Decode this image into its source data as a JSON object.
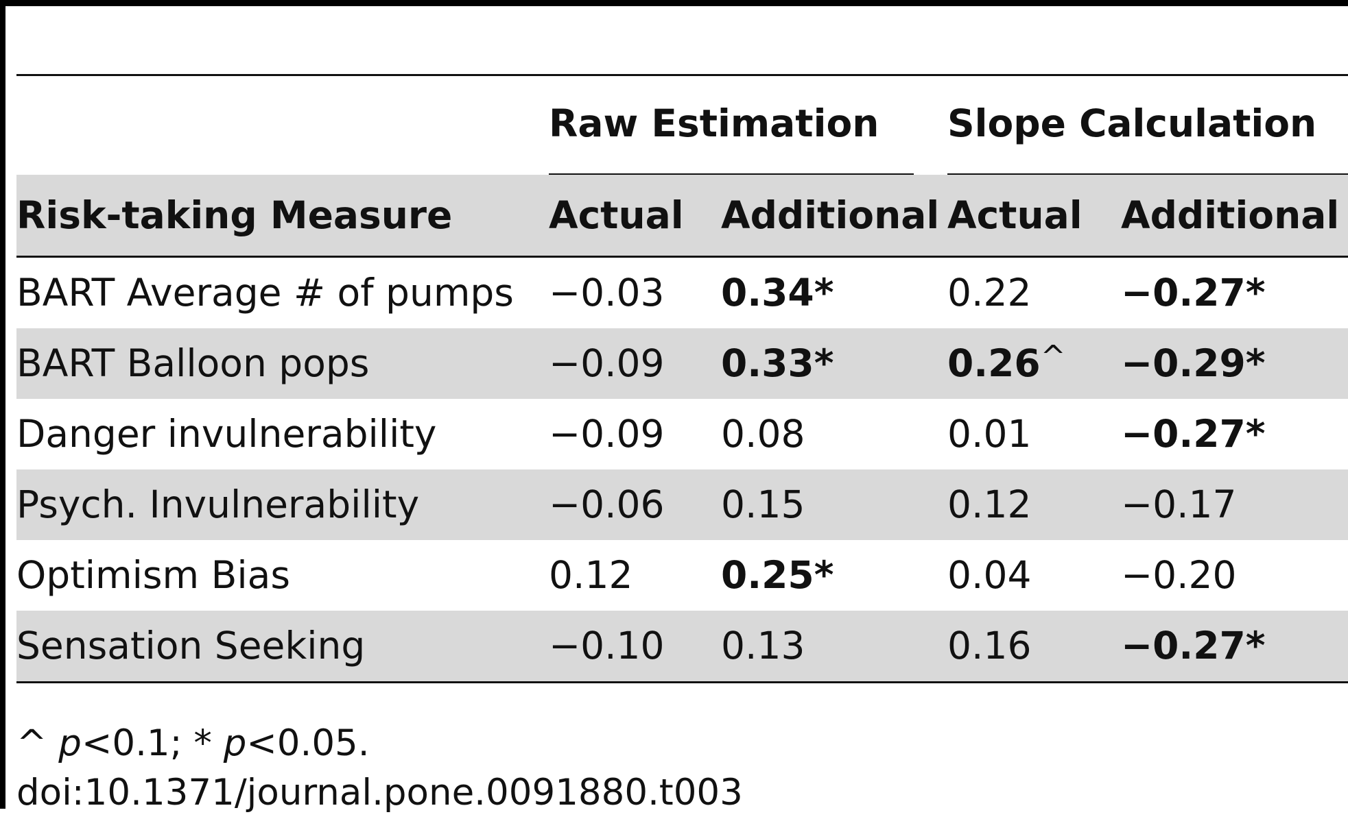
{
  "table": {
    "group_headers": [
      "Raw Estimation",
      "Slope Calculation"
    ],
    "column_headers": [
      "Risk-taking Measure",
      "Actual",
      "Additional",
      "Actual",
      "Additional"
    ],
    "rows": [
      {
        "measure": "BART Average # of pumps",
        "values": [
          {
            "text": "−0.03",
            "bold": false,
            "mark": ""
          },
          {
            "text": "0.34*",
            "bold": true,
            "mark": ""
          },
          {
            "text": "0.22",
            "bold": false,
            "mark": ""
          },
          {
            "text": "−0.27*",
            "bold": true,
            "mark": ""
          }
        ]
      },
      {
        "measure": "BART Balloon pops",
        "values": [
          {
            "text": "−0.09",
            "bold": false,
            "mark": ""
          },
          {
            "text": "0.33*",
            "bold": true,
            "mark": ""
          },
          {
            "text": "0.26",
            "bold": true,
            "mark": "^"
          },
          {
            "text": "−0.29*",
            "bold": true,
            "mark": ""
          }
        ]
      },
      {
        "measure": "Danger invulnerability",
        "values": [
          {
            "text": "−0.09",
            "bold": false,
            "mark": ""
          },
          {
            "text": "0.08",
            "bold": false,
            "mark": ""
          },
          {
            "text": "0.01",
            "bold": false,
            "mark": ""
          },
          {
            "text": "−0.27*",
            "bold": true,
            "mark": ""
          }
        ]
      },
      {
        "measure": "Psych. Invulnerability",
        "values": [
          {
            "text": "−0.06",
            "bold": false,
            "mark": ""
          },
          {
            "text": "0.15",
            "bold": false,
            "mark": ""
          },
          {
            "text": "0.12",
            "bold": false,
            "mark": ""
          },
          {
            "text": "−0.17",
            "bold": false,
            "mark": ""
          }
        ]
      },
      {
        "measure": "Optimism Bias",
        "values": [
          {
            "text": "0.12",
            "bold": false,
            "mark": ""
          },
          {
            "text": "0.25*",
            "bold": true,
            "mark": ""
          },
          {
            "text": "0.04",
            "bold": false,
            "mark": ""
          },
          {
            "text": "−0.20",
            "bold": false,
            "mark": ""
          }
        ]
      },
      {
        "measure": "Sensation Seeking",
        "values": [
          {
            "text": "−0.10",
            "bold": false,
            "mark": ""
          },
          {
            "text": "0.13",
            "bold": false,
            "mark": ""
          },
          {
            "text": "0.16",
            "bold": false,
            "mark": ""
          },
          {
            "text": "−0.27*",
            "bold": true,
            "mark": ""
          }
        ]
      }
    ]
  },
  "footnote": {
    "caret": "^",
    "p_symbol": "p",
    "first": "<0.1; * ",
    "second": "<0.05."
  },
  "doi": "doi:10.1371/journal.pone.0091880.t003"
}
